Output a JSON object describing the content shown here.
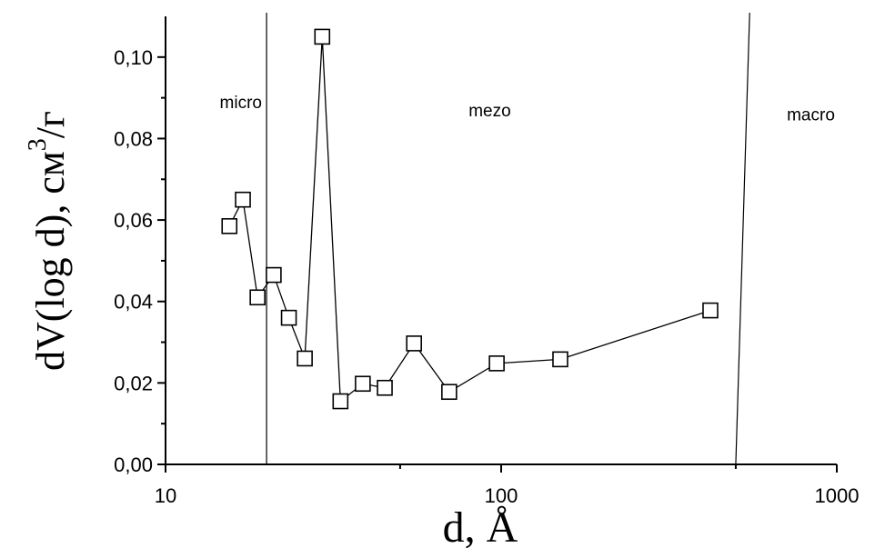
{
  "chart_data": {
    "type": "scatter",
    "x_scale": "log",
    "xlabel": "d, Å",
    "ylabel": "dV(log d), см",
    "ylabel_sup": "3",
    "ylabel_tail": "/г",
    "xlim": [
      10,
      1000
    ],
    "ylim": [
      0,
      0.11
    ],
    "x_ticks": [
      10,
      100,
      1000
    ],
    "x_tick_labels": [
      "10",
      "100",
      "1000"
    ],
    "y_ticks": [
      0,
      0.02,
      0.04,
      0.06,
      0.08,
      0.1
    ],
    "y_tick_labels": [
      "0,00",
      "0,02",
      "0,04",
      "0,06",
      "0,08",
      "0,10"
    ],
    "grid": false,
    "marker": "open-square",
    "series": [
      {
        "points": [
          [
            15.5,
            0.0585
          ],
          [
            17,
            0.065
          ],
          [
            18.8,
            0.041
          ],
          [
            21,
            0.0465
          ],
          [
            23.3,
            0.036
          ],
          [
            26,
            0.026
          ],
          [
            29.3,
            0.105
          ],
          [
            33.2,
            0.0155
          ],
          [
            38.7,
            0.0198
          ],
          [
            45,
            0.0188
          ],
          [
            55,
            0.0297
          ],
          [
            70,
            0.0178
          ],
          [
            97,
            0.0248
          ],
          [
            150,
            0.0258
          ],
          [
            420,
            0.0378
          ]
        ]
      }
    ],
    "boundaries": [
      {
        "x_bottom": 20,
        "x_top": 20
      },
      {
        "x_bottom": 500,
        "x_top": 550
      }
    ],
    "regions": [
      {
        "label": "micro",
        "x": 14.5,
        "y": 0.0875
      },
      {
        "label": "mezo",
        "x": 80,
        "y": 0.0855
      },
      {
        "label": "macro",
        "x": 710,
        "y": 0.0845
      }
    ]
  }
}
